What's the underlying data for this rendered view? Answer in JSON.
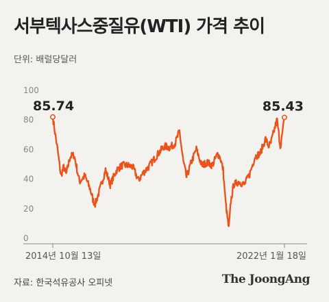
{
  "header": {
    "title": "서부텍사스중질유(WTI) 가격 추이",
    "unit": "단위: 배럴당달러"
  },
  "footer": {
    "source": "자료: 한국석유공사 오피넷",
    "logo": "The JoongAng"
  },
  "colors": {
    "line": "#e8541c",
    "background": "#f4f2ee",
    "axis": "#888888"
  },
  "chart_data": {
    "type": "line",
    "title": "서부텍사스중질유(WTI) 가격 추이",
    "ylabel": "",
    "xlabel": "",
    "ylim": [
      0,
      100
    ],
    "yticks": [
      0,
      20,
      40,
      60,
      80,
      100
    ],
    "grid": false,
    "x_tick_labels": [
      {
        "label": "2014년 10월 13일",
        "date": "2014-10-13"
      },
      {
        "label": "2022년 1월 18일",
        "date": "2022-01-18"
      }
    ],
    "annotations": [
      {
        "date": "2014-10-13",
        "value": 85.74,
        "label": "85.74"
      },
      {
        "date": "2022-01-18",
        "value": 85.43,
        "label": "85.43"
      }
    ],
    "series": [
      {
        "x": [
          "2014-10-13",
          "2014-11-01",
          "2014-12-01",
          "2015-01-15",
          "2015-02-15",
          "2015-03-15",
          "2015-05-01",
          "2015-06-15",
          "2015-08-15",
          "2015-10-15",
          "2015-12-15",
          "2016-01-20",
          "2016-02-11",
          "2016-04-01",
          "2016-06-08",
          "2016-08-01",
          "2016-10-15",
          "2016-12-15",
          "2017-02-15",
          "2017-04-15",
          "2017-06-21",
          "2017-08-15",
          "2017-10-15",
          "2017-12-15",
          "2018-02-15",
          "2018-04-15",
          "2018-06-15",
          "2018-08-15",
          "2018-10-03",
          "2018-11-15",
          "2018-12-24",
          "2019-02-15",
          "2019-04-15",
          "2019-06-15",
          "2019-08-15",
          "2019-10-15",
          "2019-12-15",
          "2020-01-15",
          "2020-02-15",
          "2020-03-15",
          "2020-04-20",
          "2020-05-15",
          "2020-06-15",
          "2020-08-15",
          "2020-10-15",
          "2020-12-15",
          "2021-02-15",
          "2021-04-15",
          "2021-06-15",
          "2021-07-20",
          "2021-08-15",
          "2021-10-25",
          "2021-12-01",
          "2021-12-20",
          "2022-01-18"
        ],
        "values": [
          85.74,
          78,
          66,
          46,
          52,
          47,
          59,
          60,
          42,
          46,
          37,
          29,
          27,
          36,
          50,
          40,
          50,
          53,
          53,
          52,
          43,
          48,
          52,
          57,
          62,
          66,
          65,
          68,
          76,
          56,
          45,
          55,
          64,
          53,
          55,
          53,
          61,
          58,
          50,
          28,
          10,
          29,
          40,
          42,
          40,
          47,
          59,
          61,
          71,
          66,
          68,
          84,
          66,
          72,
          85.43
        ]
      }
    ]
  }
}
